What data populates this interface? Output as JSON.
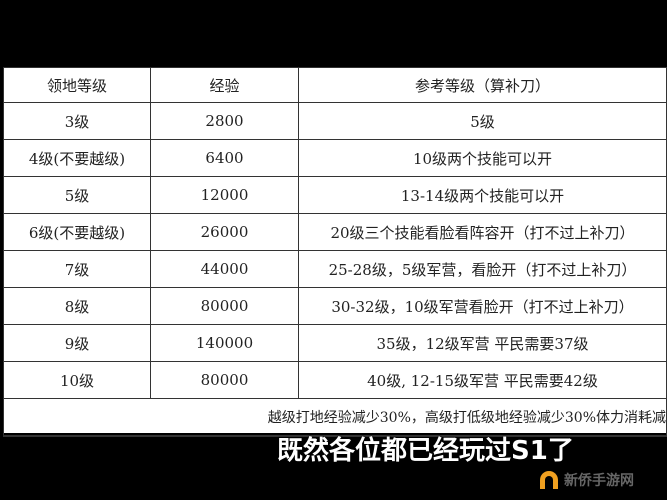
{
  "table": {
    "headers": [
      "领地等级",
      "经验",
      "参考等级（算补刀）"
    ],
    "rows": [
      [
        "3级",
        "2800",
        "5级"
      ],
      [
        "4级(不要越级)",
        "6400",
        "10级两个技能可以开"
      ],
      [
        "5级",
        "12000",
        "13-14级两个技能可以开"
      ],
      [
        "6级(不要越级)",
        "26000",
        "20级三个技能看脸看阵容开（打不过上补刀）"
      ],
      [
        "7级",
        "44000",
        "25-28级，5级军营，看脸开（打不过上补刀）"
      ],
      [
        "8级",
        "80000",
        "30-32级，10级军营看脸开（打不过上补刀）"
      ],
      [
        "9级",
        "140000",
        "35级，12级军营 平民需要37级"
      ],
      [
        "10级",
        "80000",
        "40级, 12-15级军营 平民需要42级"
      ]
    ],
    "note": "越级打地经验减少30%，高级打低级地经验减少30%体力消耗减"
  },
  "subtitle": "既然各位都已经玩过S1了",
  "watermark": "新侨手游网",
  "colors": {
    "background": "#000000",
    "watermark_icon": "#f0a020"
  }
}
